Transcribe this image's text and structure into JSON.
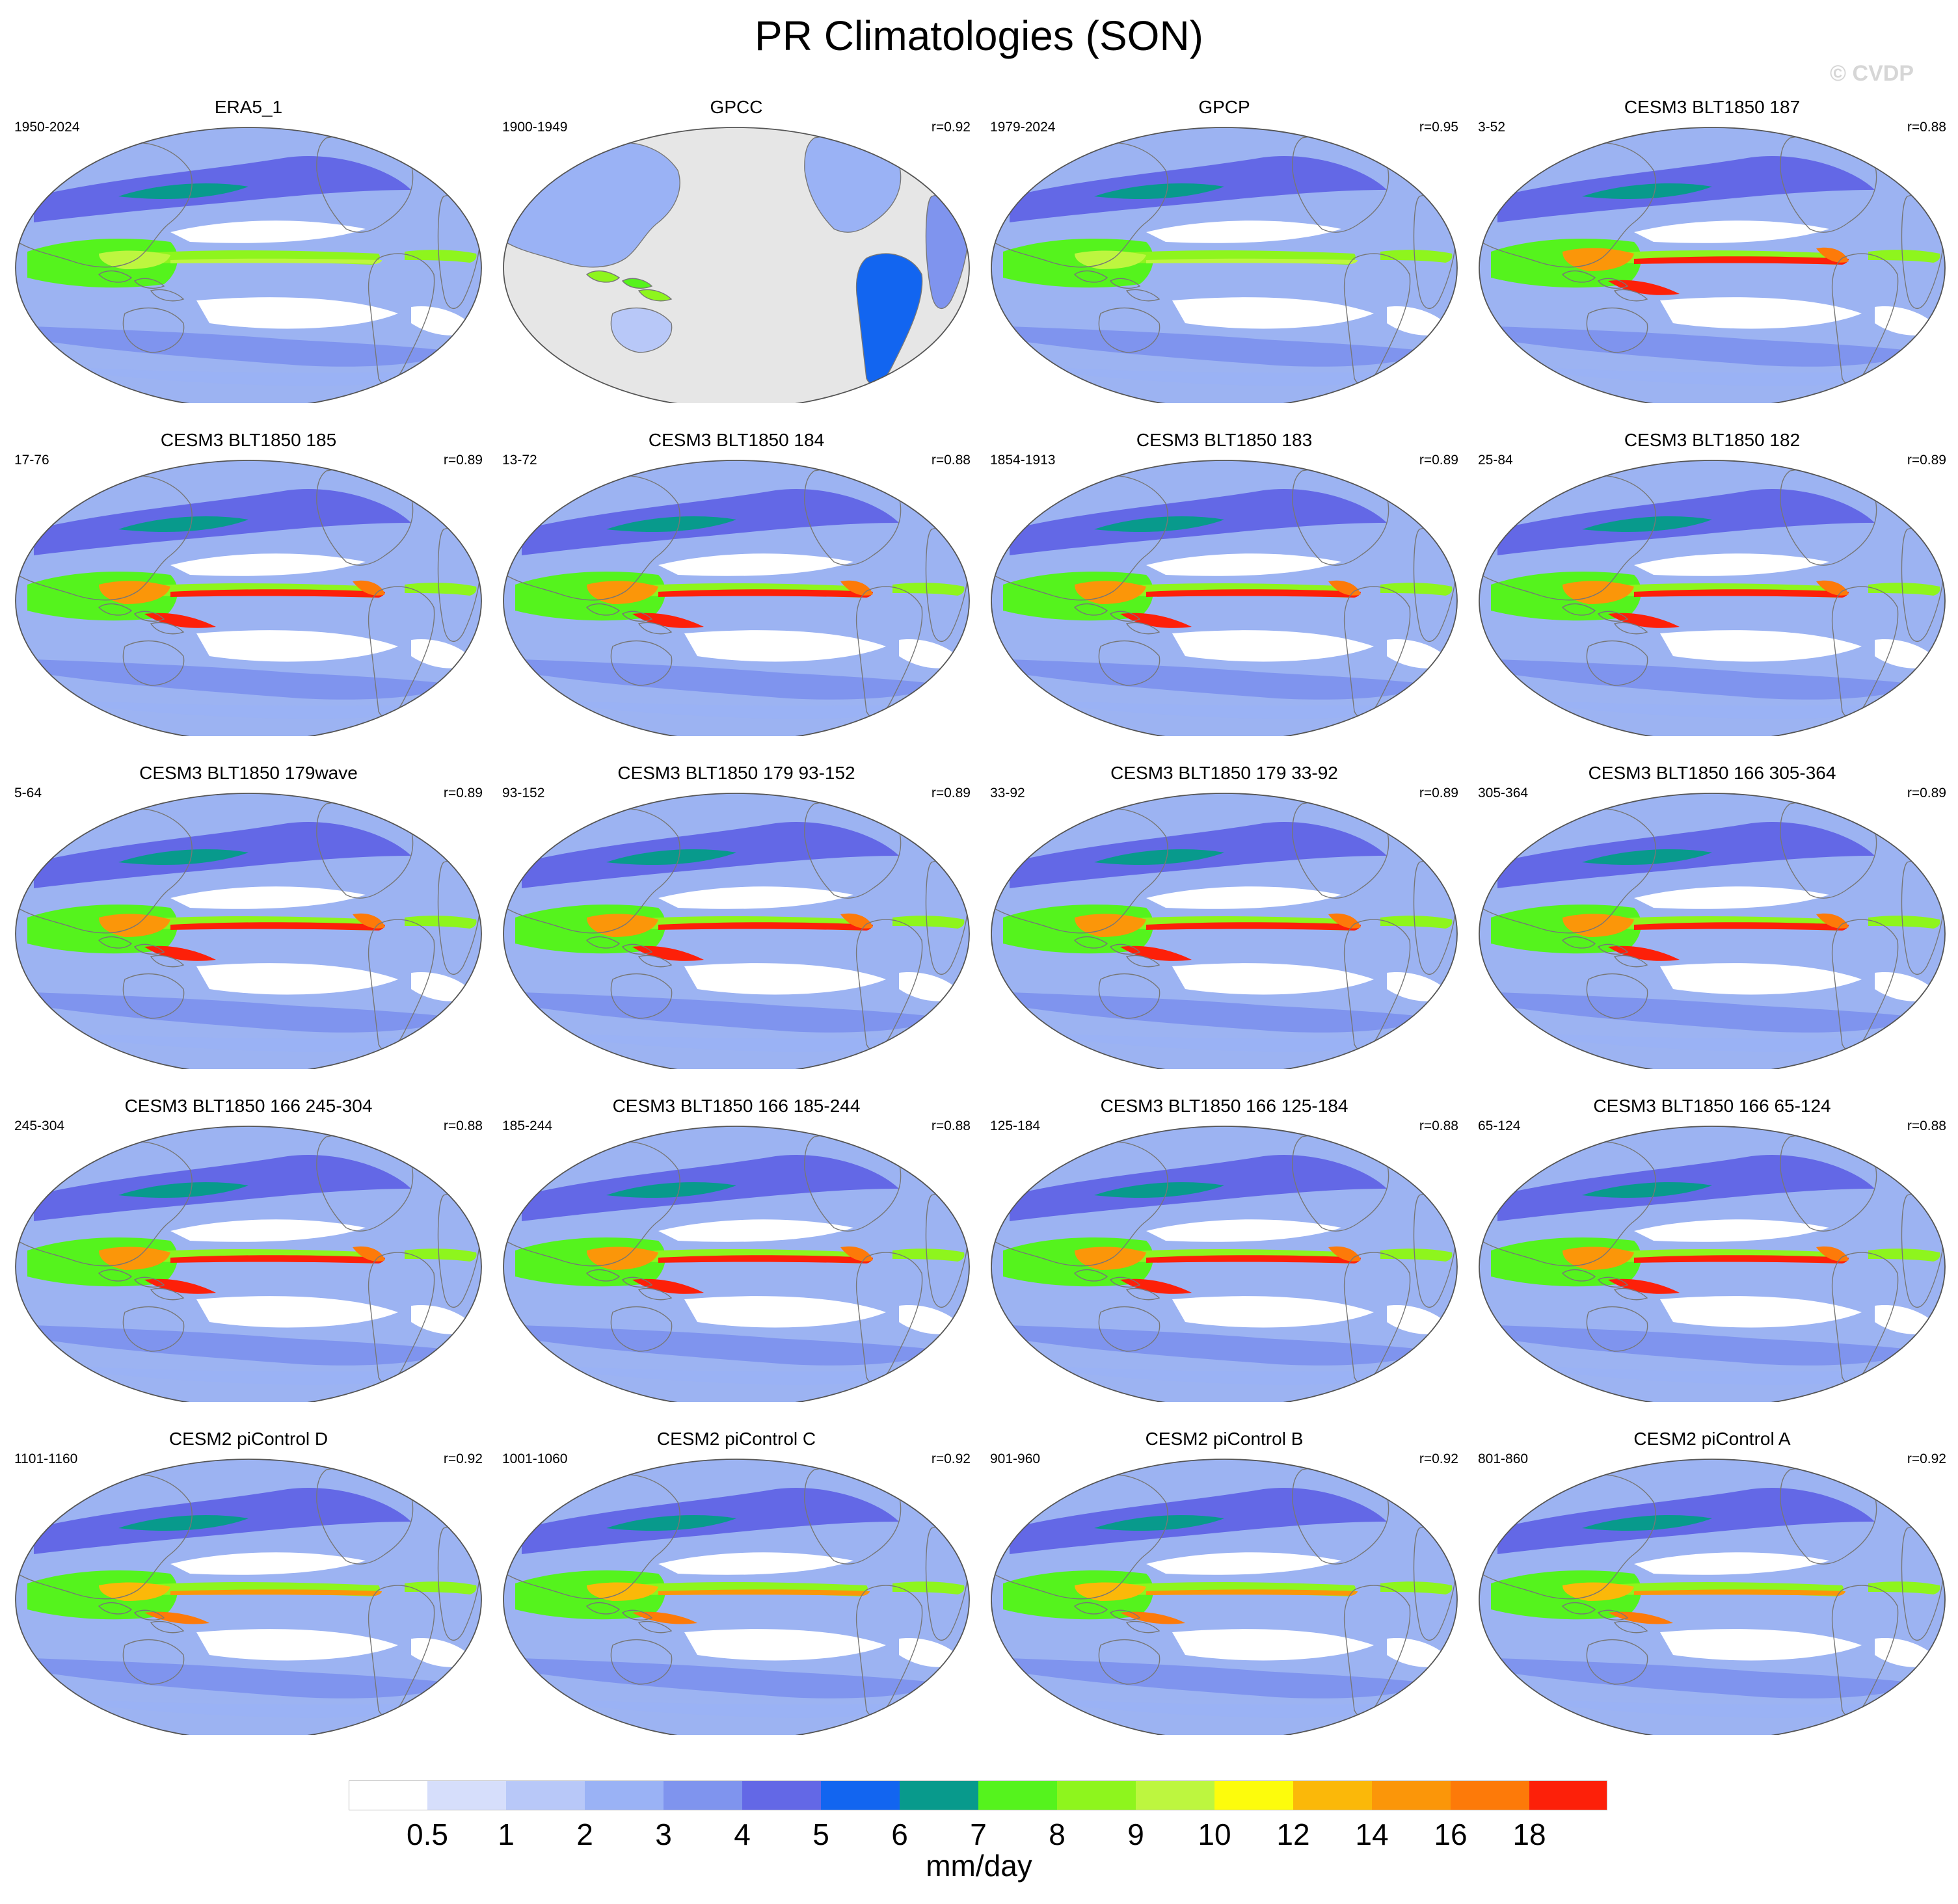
{
  "figure": {
    "title": "PR Climatologies (SON)",
    "watermark": "© CVDP"
  },
  "panels": [
    {
      "name": "ERA5_1",
      "years": "1950-2024",
      "corr": "",
      "dataset": "obs_full"
    },
    {
      "name": "GPCC",
      "years": "1900-1949",
      "corr": "r=0.92",
      "dataset": "obs_land"
    },
    {
      "name": "GPCP",
      "years": "1979-2024",
      "corr": "r=0.95",
      "dataset": "obs_full"
    },
    {
      "name": "CESM3 BLT1850 187",
      "years": "3-52",
      "corr": "r=0.88",
      "dataset": "model_strong"
    },
    {
      "name": "CESM3 BLT1850 185",
      "years": "17-76",
      "corr": "r=0.89",
      "dataset": "model_strong"
    },
    {
      "name": "CESM3 BLT1850 184",
      "years": "13-72",
      "corr": "r=0.88",
      "dataset": "model_strong"
    },
    {
      "name": "CESM3 BLT1850 183",
      "years": "1854-1913",
      "corr": "r=0.89",
      "dataset": "model_strong"
    },
    {
      "name": "CESM3 BLT1850 182",
      "years": "25-84",
      "corr": "r=0.89",
      "dataset": "model_strong"
    },
    {
      "name": "CESM3 BLT1850 179wave",
      "years": "5-64",
      "corr": "r=0.89",
      "dataset": "model_strong"
    },
    {
      "name": "CESM3 BLT1850 179 93-152",
      "years": "93-152",
      "corr": "r=0.89",
      "dataset": "model_strong"
    },
    {
      "name": "CESM3 BLT1850 179 33-92",
      "years": "33-92",
      "corr": "r=0.89",
      "dataset": "model_strong"
    },
    {
      "name": "CESM3 BLT1850 166 305-364",
      "years": "305-364",
      "corr": "r=0.89",
      "dataset": "model_strong"
    },
    {
      "name": "CESM3 BLT1850 166 245-304",
      "years": "245-304",
      "corr": "r=0.88",
      "dataset": "model_strong"
    },
    {
      "name": "CESM3 BLT1850 166 185-244",
      "years": "185-244",
      "corr": "r=0.88",
      "dataset": "model_strong"
    },
    {
      "name": "CESM3 BLT1850 166 125-184",
      "years": "125-184",
      "corr": "r=0.88",
      "dataset": "model_strong"
    },
    {
      "name": "CESM3 BLT1850 166 65-124",
      "years": "65-124",
      "corr": "r=0.88",
      "dataset": "model_strong"
    },
    {
      "name": "CESM2 piControl D",
      "years": "1101-1160",
      "corr": "r=0.92",
      "dataset": "model_mid"
    },
    {
      "name": "CESM2 piControl C",
      "years": "1001-1060",
      "corr": "r=0.92",
      "dataset": "model_mid"
    },
    {
      "name": "CESM2 piControl B",
      "years": "901-960",
      "corr": "r=0.92",
      "dataset": "model_mid"
    },
    {
      "name": "CESM2 piControl A",
      "years": "801-860",
      "corr": "r=0.92",
      "dataset": "model_mid"
    }
  ],
  "colorbar": {
    "units": "mm/day",
    "levels": [
      "0.5",
      "1",
      "2",
      "3",
      "4",
      "5",
      "6",
      "7",
      "8",
      "9",
      "10",
      "12",
      "14",
      "16",
      "18"
    ],
    "colors": [
      "#ffffff",
      "#d6defb",
      "#b8c8f8",
      "#9ab2f5",
      "#7f94ee",
      "#6368e6",
      "#1265f0",
      "#089a8c",
      "#55f31d",
      "#8ef51d",
      "#bdf63f",
      "#fdfc0c",
      "#fbb809",
      "#fb9609",
      "#fd7a09",
      "#fd2009"
    ]
  },
  "map_style": {
    "ocean_base": "#9cb3f2",
    "missing_fill": "#e6e6e6",
    "coastline_color": "#777777",
    "outline_color": "#555555"
  }
}
